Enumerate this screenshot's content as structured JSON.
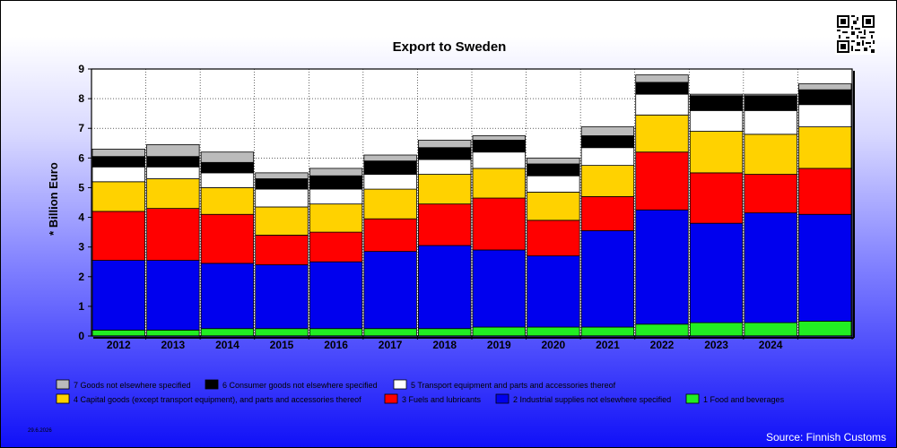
{
  "chart_data": {
    "type": "bar",
    "stacked": true,
    "title": "Export to Sweden",
    "xlabel": "",
    "ylabel": "* Billion Euro",
    "ylim": [
      0,
      9
    ],
    "yticks": [
      "0",
      "1",
      "2",
      "3",
      "4",
      "5",
      "6",
      "7",
      "8",
      "9"
    ],
    "categories": [
      "2012",
      "2013",
      "2014",
      "2015",
      "2016",
      "2017",
      "2018",
      "2019",
      "2020",
      "2021",
      "2022",
      "2023",
      "2024",
      ""
    ],
    "grid": true,
    "series": [
      {
        "name": "1 Food and beverages",
        "color": "#22ee22",
        "values": [
          0.2,
          0.2,
          0.25,
          0.25,
          0.25,
          0.25,
          0.25,
          0.3,
          0.3,
          0.3,
          0.4,
          0.45,
          0.45,
          0.5
        ]
      },
      {
        "name": "2 Industrial supplies not elsewhere specified",
        "color": "#0000ee",
        "values": [
          2.35,
          2.35,
          2.2,
          2.15,
          2.25,
          2.6,
          2.8,
          2.6,
          2.4,
          3.25,
          3.85,
          3.35,
          3.7,
          3.6
        ]
      },
      {
        "name": "3 Fuels and lubricants",
        "color": "#ff0000",
        "values": [
          1.65,
          1.75,
          1.65,
          1.0,
          1.0,
          1.1,
          1.4,
          1.75,
          1.2,
          1.15,
          1.95,
          1.7,
          1.3,
          1.55
        ]
      },
      {
        "name": "4 Capital goods (except transport equipment), and parts and accessories thereof",
        "color": "#ffd200",
        "values": [
          1.0,
          1.0,
          0.9,
          0.95,
          0.95,
          1.0,
          1.0,
          1.0,
          0.95,
          1.05,
          1.25,
          1.4,
          1.35,
          1.4
        ]
      },
      {
        "name": "5  Transport equipment and parts and accessories thereof",
        "color": "#ffffff",
        "values": [
          0.5,
          0.4,
          0.5,
          0.6,
          0.5,
          0.5,
          0.5,
          0.55,
          0.55,
          0.6,
          0.7,
          0.7,
          0.8,
          0.75
        ]
      },
      {
        "name": "6 Consumer goods not elsewhere specified",
        "color": "#000000",
        "values": [
          0.35,
          0.35,
          0.35,
          0.35,
          0.45,
          0.45,
          0.4,
          0.4,
          0.4,
          0.4,
          0.4,
          0.5,
          0.5,
          0.5
        ]
      },
      {
        "name": "7 Goods not elsewhere specified",
        "color": "#bbbbbb",
        "values": [
          0.25,
          0.4,
          0.35,
          0.2,
          0.25,
          0.2,
          0.25,
          0.15,
          0.2,
          0.3,
          0.25,
          0.05,
          0.05,
          0.2
        ]
      }
    ]
  },
  "legend_rows": [
    [
      "7 Goods not elsewhere specified",
      "6 Consumer goods not elsewhere specified",
      "5  Transport equipment and parts and accessories thereof"
    ],
    [
      "4 Capital goods (except transport equipment), and parts and accessories thereof",
      "3 Fuels and lubricants",
      "2 Industrial supplies not elsewhere specified",
      "1 Food and beverages"
    ]
  ],
  "date": "29.6.2026",
  "source": "Source: Finnish Customs"
}
